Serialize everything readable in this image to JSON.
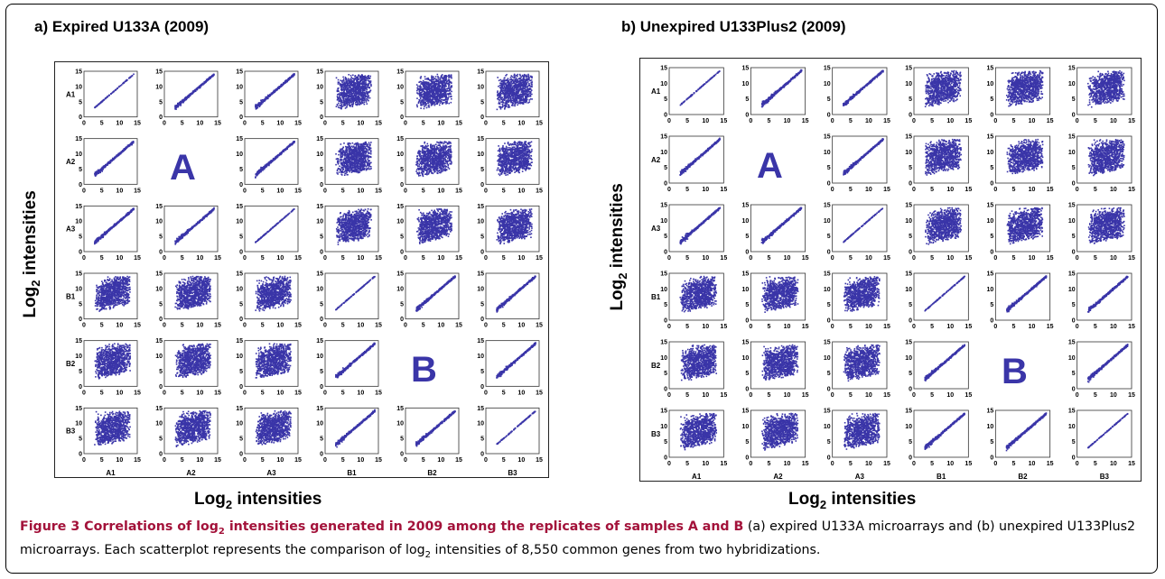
{
  "panels": [
    {
      "id": "a",
      "title": "a) Expired U133A (2009)",
      "xlabel_main": "Log",
      "xlabel_sub": "2",
      "xlabel_rest": " intensities",
      "ylabel_main": "Log",
      "ylabel_sub": "2",
      "ylabel_rest": " intensities",
      "group_labels": [
        "A",
        "B"
      ]
    },
    {
      "id": "b",
      "title": "b) Unexpired U133Plus2 (2009)",
      "xlabel_main": "Log",
      "xlabel_sub": "2",
      "xlabel_rest": " intensities",
      "ylabel_main": "Log",
      "ylabel_sub": "2",
      "ylabel_rest": " intensities",
      "group_labels": [
        "A",
        "B"
      ]
    }
  ],
  "chart_data": {
    "type": "scatter",
    "description_grid": "6x6 scatterplot matrix of replicate comparisons",
    "row_labels": [
      "A1",
      "A2",
      "A3",
      "B1",
      "B2",
      "B3"
    ],
    "col_labels": [
      "A1",
      "A2",
      "A3",
      "B1",
      "B2",
      "B3"
    ],
    "x_ticks": [
      "0",
      "5",
      "10",
      "15"
    ],
    "y_ticks": [
      "0",
      "5",
      "10",
      "15"
    ],
    "xlim": [
      0,
      15
    ],
    "ylim": [
      0,
      15
    ],
    "point_color": "#3a35a8",
    "empty_cells": [
      [
        1,
        1
      ],
      [
        4,
        4
      ]
    ]
  },
  "caption": {
    "head": "Figure 3 Correlations of log",
    "head_sub": "2",
    "head_rest": " intensities generated in 2009 among the replicates of samples A and B",
    "body_1": " (a) expired U133A microarrays and (b) unexpired U133Plus2 microarrays. Each scatterplot represents the comparison of log",
    "body_sub": "2",
    "body_2": " intensities of 8,550 common genes from two hybridizations."
  }
}
